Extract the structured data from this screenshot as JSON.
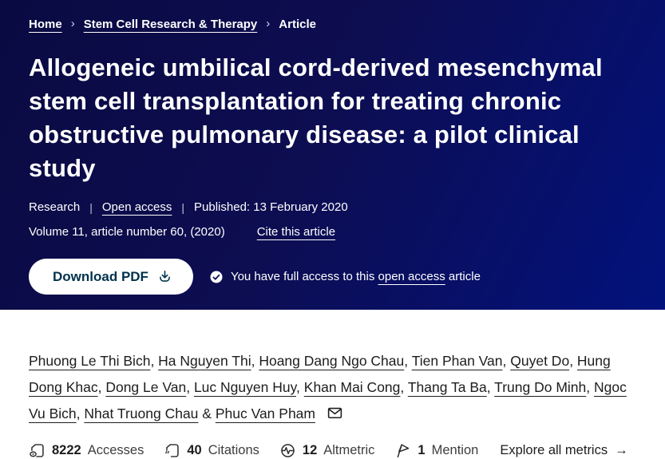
{
  "breadcrumb": {
    "home": "Home",
    "journal": "Stem Cell Research & Therapy",
    "current": "Article",
    "separator": "›"
  },
  "header": {
    "title": "Allogeneic umbilical cord-derived mesenchymal stem cell transplantation for treating chronic obstructive pulmonary disease: a pilot clinical study",
    "article_type": "Research",
    "divider": "|",
    "open_access": "Open access",
    "published": "Published: 13 February 2020",
    "volume_info": "Volume 11, article number 60, (2020)",
    "cite_link": "Cite this article",
    "download_button": "Download PDF",
    "access_prefix": "You have full access to this",
    "access_link": "open access",
    "access_suffix": "article"
  },
  "authors": {
    "names": [
      "Phuong Le Thi Bich",
      "Ha Nguyen Thi",
      "Hoang Dang Ngo Chau",
      "Tien Phan Van",
      "Quyet Do",
      "Hung Dong Khac",
      "Dong Le Van",
      "Luc Nguyen Huy",
      "Khan Mai Cong",
      "Thang Ta Ba",
      "Trung Do Minh",
      "Ngoc Vu Bich",
      "Nhat Truong Chau",
      "Phuc Van Pham"
    ],
    "separator": ", ",
    "conjunction": " & "
  },
  "metrics": {
    "items": [
      {
        "icon": "accesses-icon",
        "value": "8222",
        "label": "Accesses"
      },
      {
        "icon": "citations-icon",
        "value": "40",
        "label": "Citations"
      },
      {
        "icon": "altmetric-icon",
        "value": "12",
        "label": "Altmetric"
      },
      {
        "icon": "mention-icon",
        "value": "1",
        "label": "Mention"
      }
    ],
    "explore_link": "Explore all metrics",
    "arrow": "→"
  },
  "colors": {
    "hero_gradient_start": "#0a0a42",
    "hero_gradient_end": "#02127c",
    "button_text": "#01324b",
    "body_text": "#1d1d1d"
  }
}
